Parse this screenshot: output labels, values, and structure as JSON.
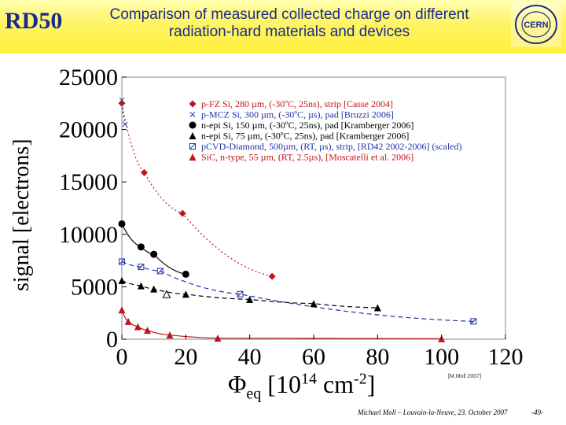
{
  "header": {
    "logo_text": "RD50",
    "title_line1": "Comparison of measured collected charge on different",
    "title_line2": "radiation-hard materials and devices",
    "cern_logo_text": "CERN"
  },
  "footer": {
    "credit": "[M.Moll 2007]",
    "text": "Michael Moll – Louvain-la-Neuve, 23. October 2007",
    "page": "-49-"
  },
  "colors": {
    "red": "#c0141c",
    "black": "#000000",
    "blue": "#2233aa",
    "header_text": "#1a2a8a"
  },
  "chart_data": {
    "type": "scatter",
    "xlabel_main": "Φ",
    "xlabel_sub": "eq",
    "xlabel_unit_pre": "[10",
    "xlabel_exp1": "14",
    "xlabel_unit_mid": " cm",
    "xlabel_exp2": "-2",
    "xlabel_unit_post": "]",
    "ylabel": "signal [electrons]",
    "xlim": [
      0,
      120
    ],
    "ylim": [
      0,
      25000
    ],
    "xticks": [
      "0",
      "20",
      "40",
      "60",
      "80",
      "100",
      "120"
    ],
    "yticks": [
      "0",
      "5000",
      "10000",
      "15000",
      "20000",
      "25000"
    ],
    "legend_position": "top-right",
    "series": [
      {
        "name": "p-FZ Si, 280 µm, (-30ºC, 25ns), strip [Casse 2004]",
        "color": "#c0141c",
        "marker": "diamond",
        "points": [
          [
            0,
            22500
          ],
          [
            7,
            15900
          ],
          [
            19,
            12000
          ],
          [
            47,
            6000
          ]
        ],
        "fit": "dotted"
      },
      {
        "name": "p-MCZ Si, 300 µm, (-30ºC, µs), pad [Bruzzi 2006]",
        "color": "#2233aa",
        "marker": "x",
        "points": [
          [
            0,
            22800
          ],
          [
            1,
            20500
          ]
        ],
        "fit": "dotted"
      },
      {
        "name": "n-epi Si, 150 µm, (-30ºC, 25ns), pad [Kramberger 2006]",
        "color": "#000000",
        "marker": "circle",
        "points": [
          [
            0,
            11000
          ],
          [
            6,
            8800
          ],
          [
            10,
            8100
          ],
          [
            20,
            6200
          ]
        ],
        "fit": "solid"
      },
      {
        "name": "n-epi Si, 75 µm, (-30ºC, 25ns), pad [Kramberger 2006]",
        "color": "#000000",
        "marker": "triangle",
        "points": [
          [
            0,
            5600
          ],
          [
            6,
            5100
          ],
          [
            10,
            4800
          ],
          [
            20,
            4300
          ],
          [
            40,
            3800
          ],
          [
            60,
            3400
          ],
          [
            80,
            3000
          ]
        ],
        "fit": "dashed"
      },
      {
        "name": "pCVD-Diamond, 500µm, (RT, µs), strip, [RD42 2002-2006] (scaled)",
        "color": "#2233aa",
        "marker": "box",
        "points": [
          [
            0,
            7400
          ],
          [
            6,
            6900
          ],
          [
            12,
            6500
          ],
          [
            37,
            4300
          ],
          [
            110,
            1700
          ]
        ],
        "fit": "dashed"
      },
      {
        "name": "SiC, n-type, 55 µm, (RT, 2.5µs), [Moscatelli et al. 2006]",
        "color": "#c0141c",
        "marker": "triangle",
        "points": [
          [
            0,
            2800
          ],
          [
            2,
            1700
          ],
          [
            5,
            1200
          ],
          [
            8,
            850
          ],
          [
            15,
            400
          ],
          [
            30,
            100
          ],
          [
            100,
            50
          ]
        ],
        "fit": "solid"
      },
      {
        "name": "",
        "color": "#000000",
        "marker": "open-triangle",
        "points": [
          [
            14,
            4300
          ]
        ],
        "fit": "none"
      }
    ]
  }
}
